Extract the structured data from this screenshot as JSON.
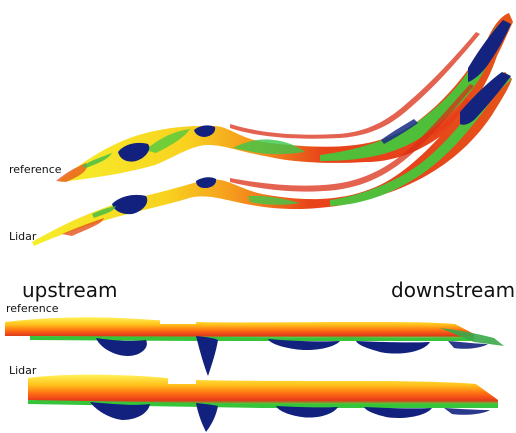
{
  "labels": {
    "plan_reference": "reference",
    "plan_lidar": "Lidar",
    "upstream": "upstream",
    "downstream": "downstream",
    "profile_reference": "reference",
    "profile_lidar": "Lidar"
  },
  "colors": {
    "yellow": "#f7ef2a",
    "orange": "#ff8c1a",
    "red": "#e8381a",
    "green": "#3fcf3a",
    "navy": "#12237f"
  }
}
